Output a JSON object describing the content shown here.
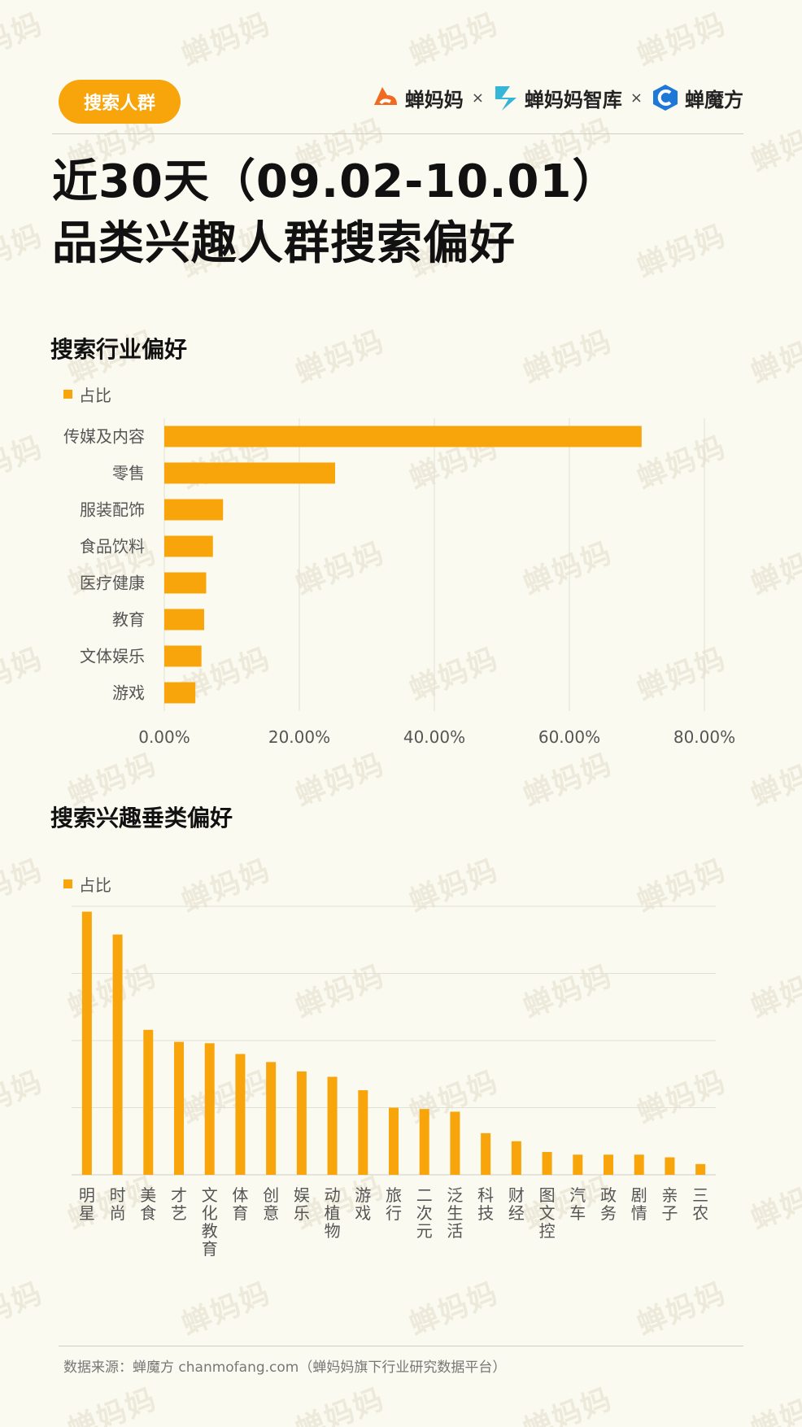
{
  "header": {
    "tag_label": "搜索人群",
    "brands": [
      "蝉妈妈",
      "蝉妈妈智库",
      "蝉魔方"
    ],
    "separator": "×"
  },
  "title": {
    "line1": "近30天（09.02-10.01）",
    "line2": "品类兴趣人群搜索偏好"
  },
  "colors": {
    "accent": "#f7a50a",
    "bar": "#f7a50a",
    "background": "#fbfaf0"
  },
  "icons": [
    "chanmama-logo-icon",
    "chanmama-zhiku-logo-icon",
    "chanmofang-logo-icon"
  ],
  "chart_data": [
    {
      "type": "bar",
      "orientation": "horizontal",
      "title": "搜索行业偏好",
      "categories": [
        "传媒及内容",
        "零售",
        "服装配饰",
        "食品饮料",
        "医疗健康",
        "教育",
        "文体娱乐",
        "游戏"
      ],
      "series": [
        {
          "name": "占比",
          "values": [
            70.7,
            25.3,
            8.7,
            7.2,
            6.2,
            5.9,
            5.5,
            4.6
          ]
        }
      ],
      "xlim": [
        0,
        80
      ],
      "xticks": [
        "0.00%",
        "20.00%",
        "40.00%",
        "60.00%",
        "80.00%"
      ],
      "grid": "vertical",
      "legend": "top-left"
    },
    {
      "type": "bar",
      "orientation": "vertical",
      "title": "搜索兴趣垂类偏好",
      "categories": [
        "明星",
        "时尚",
        "美食",
        "才艺",
        "文化教育",
        "体育",
        "创意",
        "娱乐",
        "动植物",
        "游戏",
        "旅行",
        "二次元",
        "泛生活",
        "科技",
        "财经",
        "图文控",
        "汽车",
        "政务",
        "剧情",
        "亲子",
        "三农"
      ],
      "series": [
        {
          "name": "占比",
          "values": [
            19.6,
            17.9,
            10.8,
            9.9,
            9.8,
            9.0,
            8.4,
            7.7,
            7.3,
            6.3,
            5.0,
            4.9,
            4.7,
            3.1,
            2.5,
            1.7,
            1.5,
            1.5,
            1.5,
            1.3,
            0.8
          ]
        }
      ],
      "ylim": [
        0,
        20
      ],
      "grid": "horizontal",
      "legend": "top-left",
      "y_tick_labels_shown": false
    }
  ],
  "footer": {
    "source": "数据来源：蝉魔方 chanmofang.com（蝉妈妈旗下行业研究数据平台）"
  }
}
